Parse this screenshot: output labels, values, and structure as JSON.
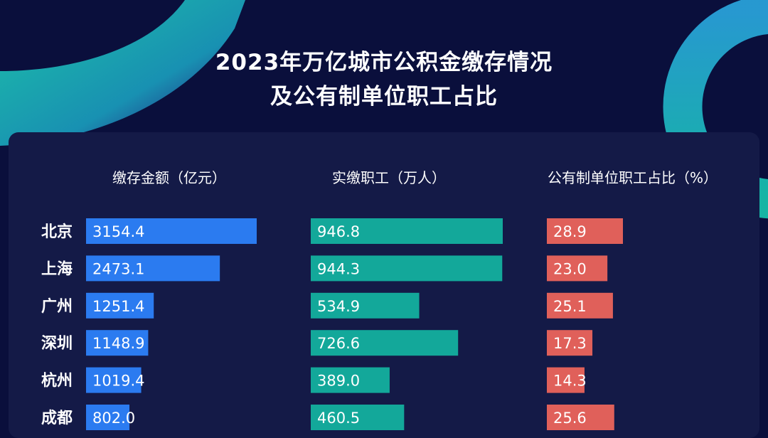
{
  "title_line1": "2023年万亿城市公积金缴存情况",
  "title_line2": "及公有制单位职工占比",
  "colors": {
    "background": "#0a0f3c",
    "panel": "#141a47",
    "deposit_bar": "#2b7bf0",
    "workers_bar": "#13a89a",
    "share_bar": "#e0605a"
  },
  "chart_data": {
    "type": "bar",
    "categories": [
      "北京",
      "上海",
      "广州",
      "深圳",
      "杭州",
      "成都"
    ],
    "series": [
      {
        "name": "缴存金额（亿元）",
        "values": [
          3154.4,
          2473.1,
          1251.4,
          1148.9,
          1019.4,
          802.0
        ],
        "labels": [
          "3154.4",
          "2473.1",
          "1251.4",
          "1148.9",
          "1019.4",
          "802.0"
        ],
        "max": 3154.4
      },
      {
        "name": "实缴职工（万人）",
        "values": [
          946.8,
          944.3,
          534.9,
          726.6,
          389.0,
          460.5
        ],
        "labels": [
          "946.8",
          "944.3",
          "534.9",
          "726.6",
          "389.0",
          "460.5"
        ],
        "max": 946.8
      },
      {
        "name": "公有制单位职工占比（%）",
        "values": [
          28.9,
          23.0,
          25.1,
          17.3,
          14.3,
          25.6
        ],
        "labels": [
          "28.9",
          "23.0",
          "25.1",
          "17.3",
          "14.3",
          "25.6"
        ],
        "max": 28.9
      }
    ]
  }
}
